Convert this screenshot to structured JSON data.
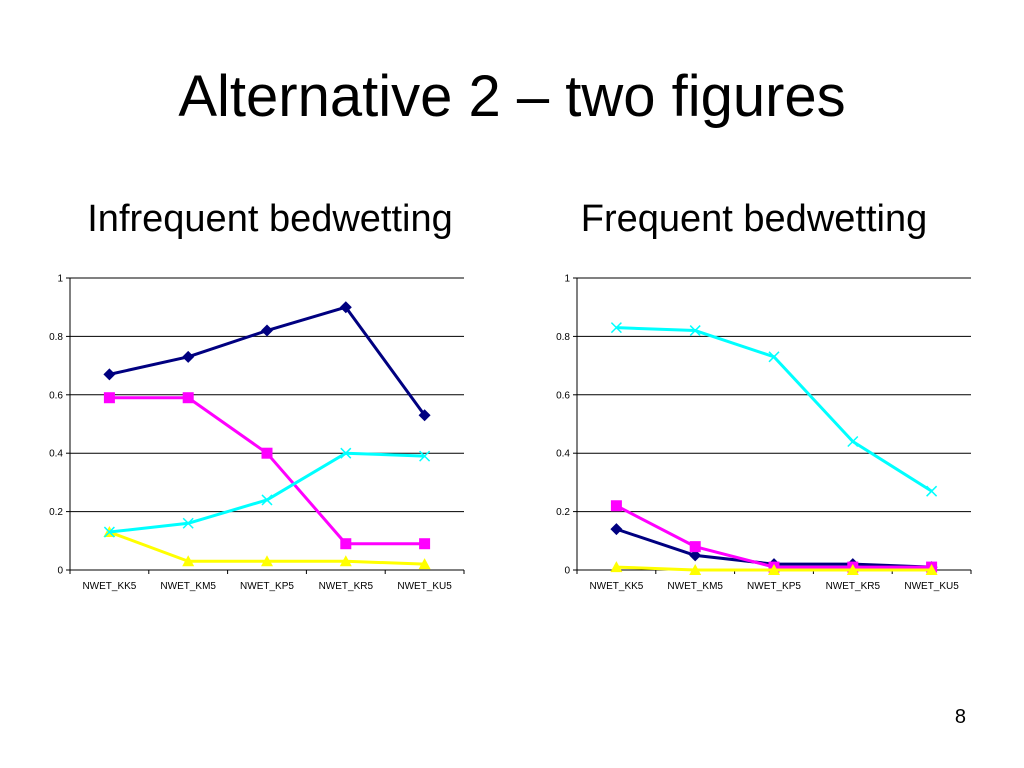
{
  "slide": {
    "title": "Alternative 2 – two figures",
    "page_number": "8"
  },
  "chart_data": [
    {
      "type": "line",
      "title": "Infrequent bedwetting",
      "categories": [
        "NWET_KK5",
        "NWET_KM5",
        "NWET_KP5",
        "NWET_KR5",
        "NWET_KU5"
      ],
      "ylim": [
        0,
        1
      ],
      "yticks": [
        "0",
        "0.2",
        "0.4",
        "0.6",
        "0.8",
        "1"
      ],
      "grid": true,
      "legend": "none",
      "series": [
        {
          "color": "#000080",
          "marker": "diamond",
          "values": [
            0.67,
            0.73,
            0.82,
            0.9,
            0.53
          ]
        },
        {
          "color": "#FF00FF",
          "marker": "square",
          "values": [
            0.59,
            0.59,
            0.4,
            0.09,
            0.09
          ]
        },
        {
          "color": "#FFFF00",
          "marker": "triangle",
          "values": [
            0.13,
            0.03,
            0.03,
            0.03,
            0.02
          ]
        },
        {
          "color": "#00FFFF",
          "marker": "x",
          "values": [
            0.13,
            0.16,
            0.24,
            0.4,
            0.39
          ]
        }
      ]
    },
    {
      "type": "line",
      "title": "Frequent bedwetting",
      "categories": [
        "NWET_KK5",
        "NWET_KM5",
        "NWET_KP5",
        "NWET_KR5",
        "NWET_KU5"
      ],
      "ylim": [
        0,
        1
      ],
      "yticks": [
        "0",
        "0.2",
        "0.4",
        "0.6",
        "0.8",
        "1"
      ],
      "grid": true,
      "legend": "none",
      "series": [
        {
          "color": "#000080",
          "marker": "diamond",
          "values": [
            0.14,
            0.05,
            0.02,
            0.02,
            0.01
          ]
        },
        {
          "color": "#FF00FF",
          "marker": "square",
          "values": [
            0.22,
            0.08,
            0.01,
            0.01,
            0.01
          ]
        },
        {
          "color": "#FFFF00",
          "marker": "triangle",
          "values": [
            0.01,
            0.0,
            0.0,
            0.0,
            0.0
          ]
        },
        {
          "color": "#00FFFF",
          "marker": "x",
          "values": [
            0.83,
            0.82,
            0.73,
            0.44,
            0.27
          ]
        }
      ]
    }
  ]
}
